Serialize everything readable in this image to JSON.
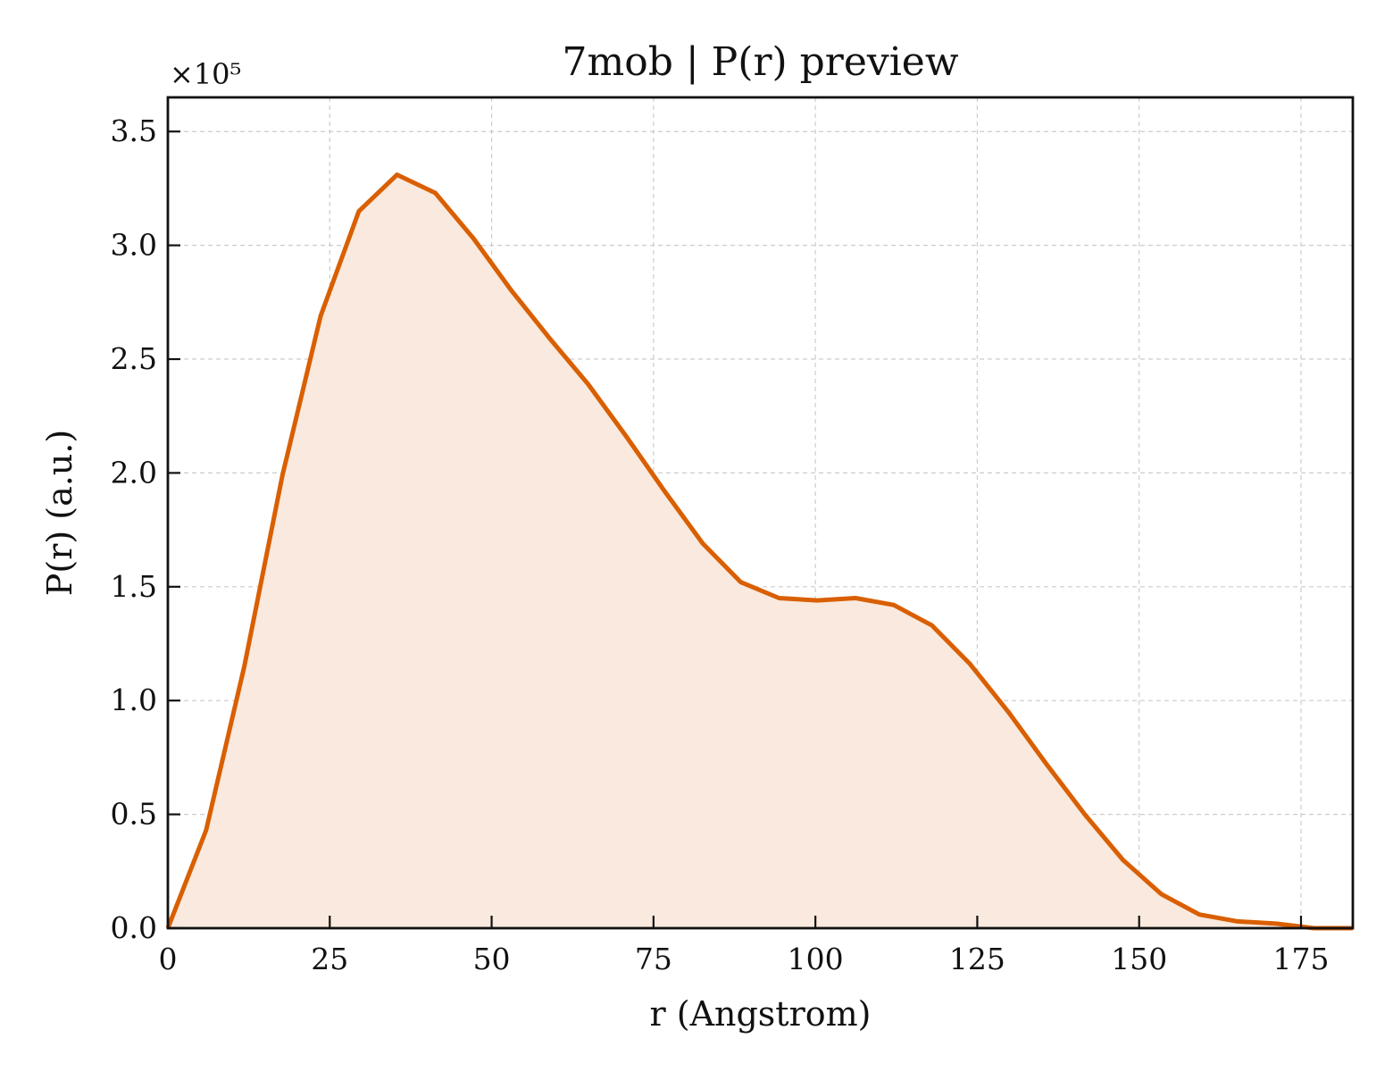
{
  "chart_data": {
    "type": "area",
    "title": "7mob | P(r) preview",
    "xlabel": "r (Angstrom)",
    "ylabel": "P(r) (a.u.)",
    "y_multiplier": "×10⁵",
    "xlim": [
      0,
      183
    ],
    "ylim": [
      0,
      3.65
    ],
    "x_ticks": [
      0,
      25,
      50,
      75,
      100,
      125,
      150,
      175
    ],
    "y_ticks": [
      0.0,
      0.5,
      1.0,
      1.5,
      2.0,
      2.5,
      3.0,
      3.5
    ],
    "x_tick_labels": [
      "0",
      "25",
      "50",
      "75",
      "100",
      "125",
      "150",
      "175"
    ],
    "y_tick_labels": [
      "0.0",
      "0.5",
      "1.0",
      "1.5",
      "2.0",
      "2.5",
      "3.0",
      "3.5"
    ],
    "grid": true,
    "line_color": "#d95f02",
    "fill_color": "#f9e9de",
    "series": [
      {
        "x": [
          0,
          5.9,
          11.8,
          17.7,
          23.6,
          29.5,
          35.4,
          41.3,
          47.2,
          53.1,
          59.0,
          64.9,
          70.8,
          76.7,
          82.6,
          88.5,
          94.4,
          100.3,
          106.2,
          112.1,
          118.0,
          123.9,
          129.8,
          135.7,
          141.6,
          147.5,
          153.4,
          159.3,
          165.2,
          171.1,
          177.0,
          183.0
        ],
        "y": [
          0.0,
          0.43,
          1.15,
          1.99,
          2.69,
          3.15,
          3.31,
          3.23,
          3.03,
          2.8,
          2.59,
          2.39,
          2.16,
          1.92,
          1.69,
          1.52,
          1.45,
          1.44,
          1.45,
          1.42,
          1.33,
          1.16,
          0.95,
          0.72,
          0.5,
          0.3,
          0.15,
          0.06,
          0.03,
          0.02,
          0.0,
          0.0
        ]
      }
    ]
  }
}
